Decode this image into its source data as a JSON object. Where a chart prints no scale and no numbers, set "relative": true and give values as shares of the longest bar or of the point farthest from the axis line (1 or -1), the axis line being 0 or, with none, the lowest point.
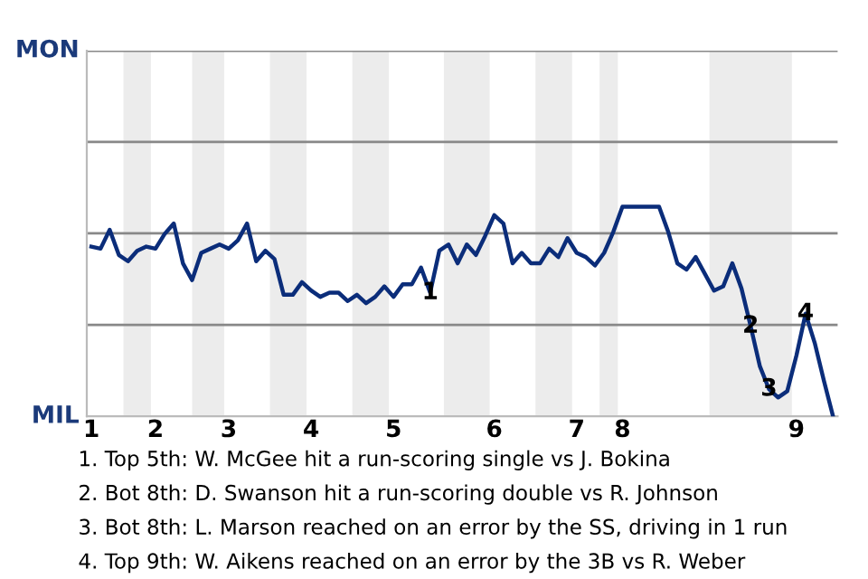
{
  "chart_data": {
    "type": "line",
    "relative": true,
    "categories": [
      "1",
      null,
      null,
      null,
      null,
      null,
      null,
      "2",
      null,
      null,
      null,
      null,
      null,
      null,
      null,
      "3",
      null,
      null,
      null,
      null,
      null,
      null,
      null,
      null,
      "4",
      null,
      null,
      null,
      null,
      null,
      null,
      null,
      null,
      "5",
      null,
      null,
      null,
      null,
      null,
      null,
      null,
      null,
      null,
      null,
      "6",
      null,
      null,
      null,
      null,
      null,
      null,
      null,
      null,
      "7",
      null,
      null,
      null,
      null,
      "8",
      null,
      null,
      null,
      null,
      null,
      null,
      null,
      null,
      null,
      null,
      null,
      null,
      null,
      null,
      null,
      null,
      null,
      null,
      "9",
      null,
      null,
      null,
      null
    ],
    "series": [
      {
        "color": "#0b2d7a",
        "values": [
          0.81,
          0.8,
          0.89,
          0.77,
          0.74,
          0.79,
          0.81,
          0.8,
          0.87,
          0.92,
          0.73,
          0.65,
          0.78,
          0.8,
          0.82,
          0.8,
          0.84,
          0.92,
          0.74,
          0.79,
          0.75,
          0.58,
          0.58,
          0.64,
          0.6,
          0.57,
          0.59,
          0.59,
          0.55,
          0.58,
          0.54,
          0.57,
          0.62,
          0.57,
          0.63,
          0.63,
          0.71,
          0.59,
          0.79,
          0.82,
          0.73,
          0.82,
          0.77,
          0.86,
          0.96,
          0.92,
          0.73,
          0.78,
          0.73,
          0.73,
          0.8,
          0.76,
          0.85,
          0.78,
          0.76,
          0.72,
          0.78,
          0.88,
          1,
          1,
          1,
          1,
          1,
          0.88,
          0.73,
          0.7,
          0.76,
          0.68,
          0.6,
          0.62,
          0.73,
          0.61,
          0.43,
          0.24,
          0.13,
          0.09,
          0.12,
          0.29,
          0.49,
          0.35,
          0.17,
          0
        ]
      }
    ],
    "marker": "none",
    "line_style": "solid",
    "ref_lines": [
      {
        "axis": "y",
        "value": 0.436,
        "color": "#888888"
      },
      {
        "axis": "y",
        "value": 0.873,
        "color": "#888888"
      },
      {
        "axis": "y",
        "value": 1.309,
        "color": "#888888"
      },
      {
        "axis": "y",
        "value": 1.745,
        "color": "#888888"
      }
    ],
    "annotations": [
      {
        "text": "1",
        "y": 0.59
      },
      {
        "text": "2",
        "y": 0.43
      },
      {
        "text": "3",
        "y": 0.13
      },
      {
        "text": "4",
        "y": 0.49
      },
      "MON",
      "MIL",
      "1. Top 5th: W. McGee hit a run-scoring single vs J. Bokina",
      "2. Bot 8th: D. Swanson hit a run-scoring double vs R. Johnson",
      "3. Bot 8th: L. Marson reached on an error by the SS, driving in 1 run",
      "4. Top 9th: W. Aikens reached on an error by the 3B vs R. Weber"
    ]
  }
}
